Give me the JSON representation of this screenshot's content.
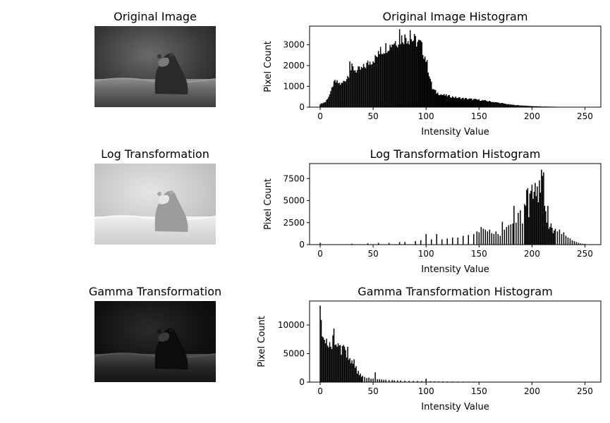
{
  "panels": [
    {
      "title": "Original Image",
      "image_kind": "original"
    },
    {
      "title": "Log Transformation",
      "image_kind": "log"
    },
    {
      "title": "Gamma Transformation",
      "image_kind": "gamma"
    }
  ],
  "chart_data": [
    {
      "type": "bar",
      "title": "Original Image Histogram",
      "xlabel": "Intensity Value",
      "ylabel": "Pixel Count",
      "xlim": [
        -10,
        265
      ],
      "ylim": [
        0,
        3900
      ],
      "xticks": [
        0,
        50,
        100,
        150,
        200,
        250
      ],
      "yticks": [
        0,
        1000,
        2000,
        3000
      ],
      "profile": [
        [
          0,
          150
        ],
        [
          5,
          250
        ],
        [
          10,
          700
        ],
        [
          13,
          1250
        ],
        [
          20,
          1100
        ],
        [
          25,
          1400
        ],
        [
          30,
          1900
        ],
        [
          35,
          1750
        ],
        [
          40,
          1850
        ],
        [
          45,
          2100
        ],
        [
          50,
          2300
        ],
        [
          55,
          2500
        ],
        [
          60,
          2800
        ],
        [
          65,
          3000
        ],
        [
          70,
          3150
        ],
        [
          75,
          3250
        ],
        [
          80,
          3400
        ],
        [
          85,
          3300
        ],
        [
          90,
          3200
        ],
        [
          95,
          3000
        ],
        [
          100,
          2300
        ],
        [
          103,
          1600
        ],
        [
          106,
          900
        ],
        [
          110,
          700
        ],
        [
          115,
          600
        ],
        [
          120,
          550
        ],
        [
          125,
          500
        ],
        [
          130,
          450
        ],
        [
          140,
          400
        ],
        [
          150,
          350
        ],
        [
          160,
          280
        ],
        [
          170,
          200
        ],
        [
          180,
          120
        ],
        [
          190,
          80
        ],
        [
          200,
          50
        ],
        [
          210,
          30
        ],
        [
          230,
          15
        ],
        [
          248,
          10
        ],
        [
          255,
          0
        ]
      ],
      "spikes": [
        [
          13,
          1250
        ],
        [
          28,
          2200
        ],
        [
          52,
          2500
        ],
        [
          57,
          2900
        ],
        [
          66,
          3000
        ],
        [
          75,
          3750
        ],
        [
          80,
          3500
        ],
        [
          85,
          3700
        ],
        [
          95,
          3200
        ]
      ]
    },
    {
      "type": "bar",
      "title": "Log Transformation Histogram",
      "xlabel": "Intensity Value",
      "ylabel": "Pixel Count",
      "xlim": [
        -10,
        265
      ],
      "ylim": [
        0,
        9200
      ],
      "xticks": [
        0,
        50,
        100,
        150,
        200,
        250
      ],
      "yticks": [
        0,
        2500,
        5000,
        7500
      ],
      "bars": [
        [
          0,
          200
        ],
        [
          30,
          100
        ],
        [
          45,
          150
        ],
        [
          55,
          200
        ],
        [
          65,
          200
        ],
        [
          75,
          300
        ],
        [
          80,
          300
        ],
        [
          90,
          400
        ],
        [
          95,
          500
        ],
        [
          100,
          1200
        ],
        [
          105,
          600
        ],
        [
          110,
          1200
        ],
        [
          115,
          600
        ],
        [
          120,
          700
        ],
        [
          125,
          800
        ],
        [
          130,
          800
        ],
        [
          135,
          1000
        ],
        [
          140,
          1100
        ],
        [
          145,
          1200
        ],
        [
          148,
          1500
        ],
        [
          150,
          1400
        ],
        [
          152,
          2000
        ],
        [
          154,
          1800
        ],
        [
          156,
          1700
        ],
        [
          158,
          1500
        ],
        [
          160,
          1700
        ],
        [
          162,
          1300
        ],
        [
          164,
          1200
        ],
        [
          166,
          1500
        ],
        [
          168,
          1200
        ],
        [
          170,
          1000
        ],
        [
          172,
          2600
        ],
        [
          174,
          1700
        ],
        [
          176,
          2000
        ],
        [
          178,
          2200
        ],
        [
          180,
          2300
        ],
        [
          182,
          2400
        ],
        [
          183,
          4400
        ],
        [
          185,
          2500
        ],
        [
          187,
          3600
        ],
        [
          189,
          3900
        ],
        [
          191,
          2400
        ],
        [
          193,
          4600
        ],
        [
          194,
          4400
        ],
        [
          195,
          6200
        ],
        [
          196,
          6400
        ],
        [
          197,
          3100
        ],
        [
          198,
          5800
        ],
        [
          199,
          6100
        ],
        [
          200,
          6800
        ],
        [
          201,
          5200
        ],
        [
          202,
          6000
        ],
        [
          203,
          7000
        ],
        [
          204,
          5500
        ],
        [
          205,
          6600
        ],
        [
          206,
          4800
        ],
        [
          207,
          7300
        ],
        [
          208,
          5900
        ],
        [
          209,
          8500
        ],
        [
          210,
          7800
        ],
        [
          211,
          8200
        ],
        [
          212,
          4400
        ],
        [
          213,
          3800
        ],
        [
          214,
          2500
        ],
        [
          215,
          4400
        ],
        [
          216,
          1800
        ],
        [
          217,
          2000
        ],
        [
          218,
          2400
        ],
        [
          219,
          1900
        ],
        [
          220,
          1300
        ],
        [
          221,
          1600
        ],
        [
          222,
          1800
        ],
        [
          224,
          1500
        ],
        [
          226,
          1700
        ],
        [
          228,
          1200
        ],
        [
          230,
          1400
        ],
        [
          232,
          1000
        ],
        [
          234,
          800
        ],
        [
          236,
          700
        ],
        [
          238,
          500
        ],
        [
          240,
          400
        ],
        [
          242,
          300
        ],
        [
          244,
          200
        ],
        [
          246,
          150
        ],
        [
          248,
          100
        ],
        [
          250,
          80
        ],
        [
          252,
          50
        ],
        [
          254,
          30
        ]
      ]
    },
    {
      "type": "bar",
      "title": "Gamma Transformation Histogram",
      "xlabel": "Intensity Value",
      "ylabel": "Pixel Count",
      "xlim": [
        -10,
        265
      ],
      "ylim": [
        0,
        14200
      ],
      "xticks": [
        0,
        50,
        100,
        150,
        200,
        250
      ],
      "yticks": [
        0,
        5000,
        10000
      ],
      "bars": [
        [
          0,
          13400
        ],
        [
          1,
          10900
        ],
        [
          2,
          8000
        ],
        [
          3,
          7800
        ],
        [
          4,
          7400
        ],
        [
          5,
          6800
        ],
        [
          6,
          7600
        ],
        [
          7,
          6400
        ],
        [
          8,
          6100
        ],
        [
          9,
          7000
        ],
        [
          10,
          6200
        ],
        [
          11,
          5800
        ],
        [
          12,
          8200
        ],
        [
          13,
          9400
        ],
        [
          14,
          6500
        ],
        [
          15,
          6600
        ],
        [
          16,
          6200
        ],
        [
          17,
          6800
        ],
        [
          18,
          6400
        ],
        [
          19,
          6500
        ],
        [
          20,
          4800
        ],
        [
          21,
          6300
        ],
        [
          22,
          6500
        ],
        [
          23,
          6200
        ],
        [
          24,
          5600
        ],
        [
          25,
          4300
        ],
        [
          26,
          6200
        ],
        [
          27,
          3900
        ],
        [
          28,
          4200
        ],
        [
          29,
          3300
        ],
        [
          30,
          3800
        ],
        [
          31,
          3200
        ],
        [
          32,
          4000
        ],
        [
          33,
          2500
        ],
        [
          34,
          2800
        ],
        [
          35,
          1500
        ],
        [
          36,
          2000
        ],
        [
          37,
          1200
        ],
        [
          38,
          1500
        ],
        [
          39,
          900
        ],
        [
          40,
          1100
        ],
        [
          42,
          900
        ],
        [
          44,
          700
        ],
        [
          46,
          800
        ],
        [
          48,
          600
        ],
        [
          50,
          600
        ],
        [
          52,
          1700
        ],
        [
          54,
          500
        ],
        [
          56,
          500
        ],
        [
          58,
          450
        ],
        [
          60,
          400
        ],
        [
          62,
          400
        ],
        [
          65,
          350
        ],
        [
          68,
          350
        ],
        [
          70,
          300
        ],
        [
          73,
          300
        ],
        [
          76,
          280
        ],
        [
          80,
          250
        ],
        [
          84,
          220
        ],
        [
          88,
          200
        ],
        [
          92,
          200
        ],
        [
          96,
          180
        ],
        [
          100,
          600
        ],
        [
          104,
          160
        ],
        [
          108,
          150
        ],
        [
          112,
          140
        ],
        [
          116,
          130
        ],
        [
          120,
          120
        ],
        [
          125,
          110
        ],
        [
          130,
          100
        ],
        [
          135,
          90
        ],
        [
          140,
          90
        ],
        [
          145,
          80
        ],
        [
          150,
          80
        ],
        [
          155,
          70
        ],
        [
          160,
          60
        ],
        [
          165,
          60
        ],
        [
          170,
          50
        ],
        [
          175,
          50
        ],
        [
          180,
          40
        ],
        [
          185,
          40
        ],
        [
          190,
          30
        ],
        [
          195,
          30
        ],
        [
          200,
          30
        ],
        [
          205,
          25
        ],
        [
          210,
          25
        ],
        [
          215,
          20
        ],
        [
          220,
          20
        ],
        [
          225,
          15
        ],
        [
          230,
          15
        ],
        [
          240,
          10
        ],
        [
          255,
          10
        ]
      ]
    }
  ]
}
